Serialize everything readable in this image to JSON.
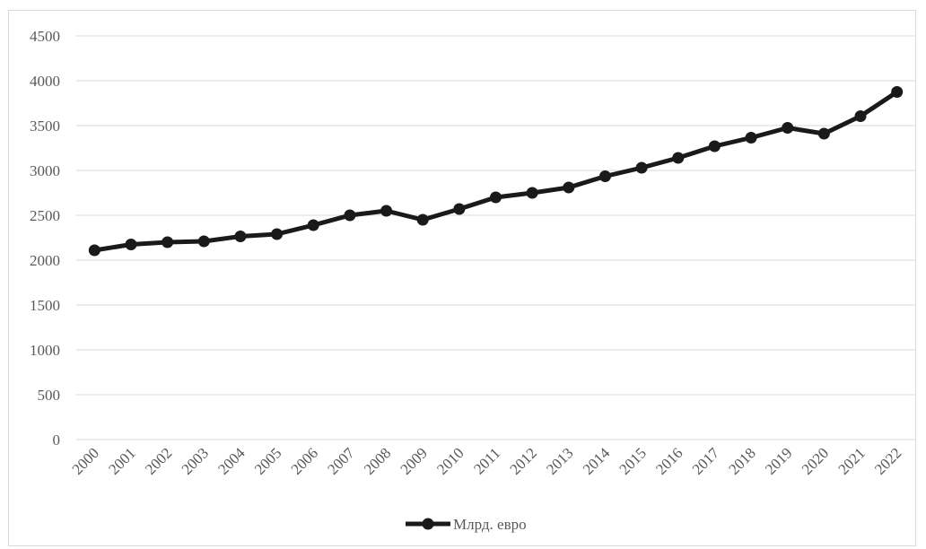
{
  "chart_data": {
    "type": "line",
    "title": "",
    "xlabel": "",
    "ylabel": "",
    "categories": [
      "2000",
      "2001",
      "2002",
      "2003",
      "2004",
      "2005",
      "2006",
      "2007",
      "2008",
      "2009",
      "2010",
      "2011",
      "2012",
      "2013",
      "2014",
      "2015",
      "2016",
      "2017",
      "2018",
      "2019",
      "2020",
      "2021",
      "2022"
    ],
    "series": [
      {
        "name": "Млрд. евро",
        "values": [
          2110,
          2175,
          2200,
          2210,
          2265,
          2290,
          2390,
          2500,
          2550,
          2450,
          2570,
          2700,
          2750,
          2810,
          2935,
          3030,
          3140,
          3270,
          3365,
          3475,
          3410,
          3605,
          3875
        ]
      }
    ],
    "ylim": [
      0,
      4500
    ],
    "yticks": [
      0,
      500,
      1000,
      1500,
      2000,
      2500,
      3000,
      3500,
      4000,
      4500
    ],
    "grid": true,
    "legend": "bottom",
    "colors": {
      "line": "#1a1a1a",
      "grid": "#d9d9d9",
      "text": "#595959"
    }
  }
}
